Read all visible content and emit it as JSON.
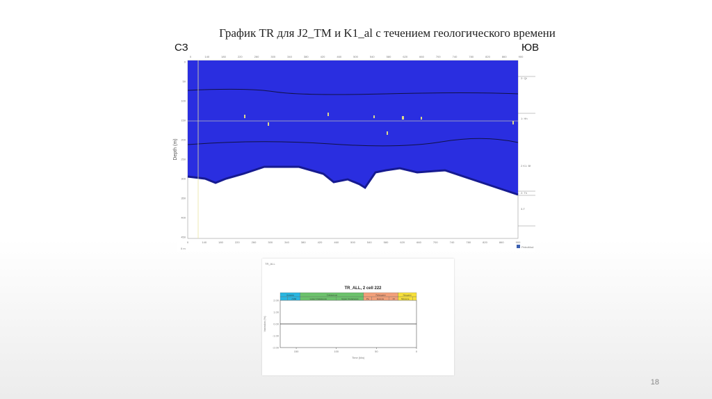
{
  "slide": {
    "title": "График TR для J2_TM и K1_al  с течением геологического времени",
    "left_direction": "СЗ",
    "right_direction": "ЮВ",
    "page_number": "18"
  },
  "section_figure": {
    "colors": {
      "sediment": "#2a2ee0",
      "basement": "#ffffff",
      "horizon": "#111144"
    },
    "y_axis_label": "Depth (m)",
    "y_ticks": [
      "0",
      "50",
      "100",
      "150",
      "200",
      "250",
      "300",
      "350",
      "400",
      "450"
    ],
    "x_ticks": [
      "0",
      "140",
      "180",
      "220",
      "260",
      "300",
      "340",
      "380",
      "420",
      "460",
      "500",
      "540",
      "580",
      "620",
      "660",
      "700",
      "740",
      "780",
      "820",
      "860",
      "900"
    ],
    "layer_labels": [
      "2: Qt",
      "1: Hh",
      "2 K1: Bf",
      "2: Th",
      "3-T"
    ],
    "logo": "PetroMod",
    "scale_label": "0 m"
  },
  "chart_data": {
    "type": "line",
    "tab_label": "TR_ALL",
    "title": "TR_ALL, 2 cell 222",
    "xlabel": "Time (Ma)",
    "ylabel": "Variation (%)",
    "xlim": [
      170,
      0
    ],
    "ylim": [
      -2,
      2
    ],
    "x_ticks": [
      "150",
      "100",
      "50",
      "0"
    ],
    "y_ticks": [
      "2.00",
      "1.00",
      "0.00",
      "-1.00",
      "-2.00"
    ],
    "series": [
      {
        "x": [
          170,
          0
        ],
        "values": [
          0,
          0
        ]
      }
    ],
    "periods": [
      {
        "label": "Jurassic",
        "start": 170,
        "end": 145,
        "color": "#29b6e0"
      },
      {
        "label": "Cretaceous",
        "start": 145,
        "end": 66,
        "color": "#6cc26c"
      },
      {
        "label": "Paleogene",
        "start": 66,
        "end": 23,
        "color": "#f2a07a"
      },
      {
        "label": "Neogene",
        "start": 23,
        "end": 0,
        "color": "#f7e03a"
      }
    ],
    "epochs": [
      {
        "label": "",
        "start": 170,
        "end": 161,
        "color": "#29b6e0"
      },
      {
        "label": "J Mid",
        "start": 161,
        "end": 145,
        "color": "#29b6e0"
      },
      {
        "label": "Lower Cretaceous",
        "start": 145,
        "end": 100,
        "color": "#6cc26c"
      },
      {
        "label": "Upper Cretaceous",
        "start": 100,
        "end": 66,
        "color": "#6cc26c"
      },
      {
        "label": "Pa",
        "start": 66,
        "end": 56,
        "color": "#f2a07a"
      },
      {
        "label": "Eocene",
        "start": 56,
        "end": 34,
        "color": "#f2a07a"
      },
      {
        "label": "Ol",
        "start": 34,
        "end": 23,
        "color": "#f2a07a"
      },
      {
        "label": "Miocene",
        "start": 23,
        "end": 5,
        "color": "#f7e03a"
      },
      {
        "label": "",
        "start": 5,
        "end": 0,
        "color": "#f7e03a"
      }
    ]
  }
}
